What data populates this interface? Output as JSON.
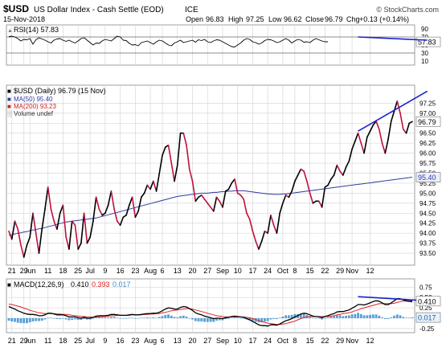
{
  "header": {
    "symbol": "$USD",
    "name": "US Dollar Index - Cash Settle (EOD)",
    "exchange": "ICE",
    "date": "15-Nov-2018",
    "watermark": "© StockCharts.com",
    "open_label": "Open",
    "open": "96.83",
    "high_label": "High",
    "high": "97.25",
    "low_label": "Low",
    "low": "96.62",
    "close_label": "Close",
    "close": "96.79",
    "chg_label": "Chg",
    "chg": "+0.13 (+0.14%)"
  },
  "colors": {
    "price": "#000000",
    "down": "#c0103c",
    "ma50": "#303aa0",
    "ma200": "#cc2222",
    "trend": "#1a22cc",
    "macd_line": "#000000",
    "macd_signal": "#dd2222",
    "histogram": "#3b8fd0",
    "rsi_fill": "#6e8f4a",
    "grid": "#d7d7d7"
  },
  "chart_data": [
    {
      "type": "line",
      "name": "rsi",
      "legend": "RSI(14) 57.83",
      "ylim": [
        0,
        100
      ],
      "yticks": [
        10,
        30,
        50,
        70,
        90
      ],
      "reference_lines": [
        30,
        70
      ],
      "current_value": 57.83,
      "current_label": "57.83",
      "values": [
        71,
        72,
        70,
        66,
        60,
        64,
        63,
        66,
        52,
        63,
        68,
        65,
        62,
        58,
        55,
        62,
        65,
        66,
        62,
        59,
        62,
        58,
        55,
        60,
        66,
        68,
        62,
        56,
        50,
        55,
        54,
        60,
        64,
        62,
        60,
        66,
        72,
        70,
        62,
        61,
        54,
        50,
        51,
        48,
        56,
        58,
        60,
        56,
        52,
        58,
        62,
        60,
        55,
        50,
        48,
        55,
        58,
        62,
        56,
        58,
        60,
        62,
        57,
        63,
        61,
        64,
        58,
        56,
        60,
        63,
        62,
        58,
        54,
        50,
        46,
        45,
        50,
        55,
        62,
        66,
        64,
        58,
        56,
        52,
        55,
        61,
        64,
        63,
        60,
        56,
        58,
        62,
        66,
        62,
        55,
        60,
        64,
        62,
        57,
        58,
        56,
        62,
        66,
        63,
        60,
        58,
        58
      ]
    },
    {
      "type": "line",
      "name": "price",
      "legend": [
        "$USD (Daily) 96.79 (15 Nov)",
        "MA(50) 95.40",
        "MA(200) 93.23",
        "Volume undef"
      ],
      "ylim": [
        93.2,
        97.7
      ],
      "yticks": [
        93.5,
        93.75,
        94.0,
        94.25,
        94.5,
        94.75,
        95.0,
        95.25,
        95.5,
        95.75,
        96.0,
        96.25,
        96.5,
        96.75,
        97.0,
        97.25
      ],
      "ytick_labels": [
        "93.50",
        "93.75",
        "94.00",
        "94.25",
        "94.50",
        "94.75",
        "95.00",
        "95.25",
        "95.50",
        "95.75",
        "96.00",
        "96.25",
        "96.50",
        "96.75",
        "97.00",
        "97.25"
      ],
      "last_value_label": "96.79",
      "ma50_value_label": "95.40",
      "x_labels": [
        "21",
        "29",
        "Jun",
        "11",
        "18",
        "25",
        "Jul",
        "9",
        "16",
        "23",
        "Aug",
        "6",
        "13",
        "20",
        "27",
        "Sep",
        "10",
        "17",
        "24",
        "Oct",
        "8",
        "15",
        "22",
        "29",
        "Nov",
        "12"
      ],
      "x_label_index": [
        1,
        5,
        7,
        13,
        18,
        23,
        27,
        32,
        37,
        42,
        47,
        51,
        56,
        61,
        66,
        71,
        76,
        81,
        86,
        91,
        95,
        100,
        105,
        110,
        114,
        120
      ],
      "values": [
        94.05,
        93.85,
        94.3,
        94.1,
        93.7,
        93.4,
        93.7,
        93.9,
        94.5,
        94.0,
        93.5,
        94.1,
        94.6,
        95.15,
        94.6,
        94.3,
        94.1,
        94.5,
        94.7,
        93.9,
        93.6,
        94.3,
        94.2,
        93.6,
        93.75,
        94.5,
        93.75,
        93.9,
        94.3,
        94.9,
        94.6,
        94.45,
        94.5,
        94.7,
        95.05,
        94.6,
        94.3,
        94.2,
        94.4,
        94.45,
        94.7,
        94.9,
        94.4,
        94.55,
        94.9,
        95.0,
        95.2,
        95.1,
        95.3,
        95.05,
        95.5,
        95.95,
        96.15,
        96.2,
        95.75,
        95.3,
        95.7,
        96.5,
        96.5,
        96.2,
        95.6,
        95.3,
        94.8,
        94.9,
        94.95,
        94.85,
        94.75,
        94.65,
        94.55,
        94.9,
        94.8,
        94.65,
        95.05,
        95.1,
        95.25,
        95.35,
        95.0,
        94.95,
        94.85,
        94.5,
        94.35,
        94.05,
        93.8,
        93.6,
        93.8,
        94.05,
        94.0,
        94.45,
        94.2,
        94.0,
        94.5,
        94.75,
        94.95,
        94.9,
        95.05,
        95.3,
        95.45,
        95.6,
        95.55,
        95.3,
        95.0,
        94.75,
        94.8,
        94.8,
        94.65,
        95.15,
        95.2,
        95.35,
        95.45,
        95.7,
        95.55,
        95.45,
        95.65,
        95.8,
        96.1,
        96.3,
        96.5,
        96.25,
        96.0,
        96.4,
        96.55,
        96.7,
        96.8,
        96.6,
        96.25,
        96.0,
        96.35,
        96.8,
        97.05,
        97.3,
        97.0,
        96.6,
        96.5,
        96.75,
        96.79
      ],
      "ma50": [
        93.95,
        93.96,
        93.98,
        94.0,
        94.01,
        94.03,
        94.04,
        94.06,
        94.08,
        94.09,
        94.11,
        94.12,
        94.14,
        94.16,
        94.18,
        94.2,
        94.22,
        94.24,
        94.26,
        94.28,
        94.29,
        94.3,
        94.31,
        94.32,
        94.33,
        94.34,
        94.35,
        94.36,
        94.37,
        94.38,
        94.4,
        94.42,
        94.44,
        94.46,
        94.48,
        94.5,
        94.52,
        94.54,
        94.56,
        94.58,
        94.6,
        94.62,
        94.64,
        94.66,
        94.68,
        94.7,
        94.72,
        94.74,
        94.76,
        94.78,
        94.8,
        94.82,
        94.84,
        94.86,
        94.88,
        94.9,
        94.92,
        94.93,
        94.94,
        94.95,
        94.96,
        94.97,
        94.98,
        94.99,
        95.0,
        95.0,
        95.0,
        95.01,
        95.02,
        95.02,
        95.03,
        95.04,
        95.04,
        95.05,
        95.05,
        95.06,
        95.06,
        95.06,
        95.06,
        95.05,
        95.04,
        95.03,
        95.02,
        95.01,
        95.0,
        94.99,
        94.98,
        94.98,
        94.97,
        94.97,
        94.97,
        94.98,
        94.98,
        94.99,
        95.0,
        95.01,
        95.02,
        95.03,
        95.04,
        95.05,
        95.06,
        95.07,
        95.08,
        95.09,
        95.1,
        95.11,
        95.12,
        95.13,
        95.14,
        95.15,
        95.16,
        95.17,
        95.18,
        95.19,
        95.2,
        95.21,
        95.22,
        95.23,
        95.24,
        95.25,
        95.26,
        95.27,
        95.28,
        95.29,
        95.3,
        95.31,
        95.32,
        95.33,
        95.34,
        95.35,
        95.36,
        95.37,
        95.38,
        95.39,
        95.4
      ],
      "annotations": [
        {
          "type": "trendline",
          "from": [
            116,
            96.55
          ],
          "to": [
            139,
            97.55
          ]
        }
      ]
    },
    {
      "type": "line",
      "name": "macd",
      "legend": [
        "MACD(12,26,9)",
        "0.410",
        "0.393",
        "0.017"
      ],
      "ylim": [
        -0.35,
        0.95
      ],
      "yticks": [
        -0.25,
        0.0,
        0.25,
        0.5,
        0.75
      ],
      "ytick_labels": [
        "-0.25",
        "0.00",
        "0.25",
        "0.50",
        "0.75"
      ],
      "macd_value_label": "0.410",
      "hist_value_label": "0.017",
      "macd": [
        0.28,
        0.25,
        0.22,
        0.18,
        0.15,
        0.12,
        0.1,
        0.09,
        0.09,
        0.08,
        0.06,
        0.06,
        0.08,
        0.12,
        0.12,
        0.1,
        0.08,
        0.08,
        0.08,
        0.06,
        0.03,
        0.03,
        0.03,
        0.01,
        0.0,
        0.02,
        0.0,
        0.0,
        0.02,
        0.05,
        0.06,
        0.06,
        0.06,
        0.07,
        0.09,
        0.09,
        0.08,
        0.07,
        0.07,
        0.07,
        0.08,
        0.09,
        0.08,
        0.08,
        0.09,
        0.1,
        0.11,
        0.11,
        0.12,
        0.12,
        0.14,
        0.18,
        0.22,
        0.25,
        0.24,
        0.22,
        0.22,
        0.26,
        0.28,
        0.27,
        0.23,
        0.19,
        0.13,
        0.1,
        0.08,
        0.05,
        0.03,
        0.01,
        -0.01,
        0.0,
        0.0,
        -0.01,
        0.01,
        0.02,
        0.04,
        0.05,
        0.04,
        0.03,
        0.02,
        -0.01,
        -0.04,
        -0.08,
        -0.12,
        -0.16,
        -0.18,
        -0.18,
        -0.19,
        -0.16,
        -0.16,
        -0.17,
        -0.14,
        -0.1,
        -0.06,
        -0.04,
        -0.01,
        0.03,
        0.06,
        0.1,
        0.12,
        0.11,
        0.08,
        0.05,
        0.04,
        0.03,
        0.01,
        0.04,
        0.06,
        0.09,
        0.11,
        0.15,
        0.16,
        0.16,
        0.18,
        0.2,
        0.24,
        0.28,
        0.33,
        0.33,
        0.32,
        0.34,
        0.37,
        0.4,
        0.42,
        0.41,
        0.37,
        0.33,
        0.33,
        0.37,
        0.42,
        0.47,
        0.47,
        0.44,
        0.42,
        0.41,
        0.41
      ],
      "signal": [
        0.34,
        0.33,
        0.31,
        0.29,
        0.27,
        0.24,
        0.22,
        0.19,
        0.17,
        0.15,
        0.13,
        0.12,
        0.11,
        0.11,
        0.11,
        0.11,
        0.1,
        0.1,
        0.09,
        0.09,
        0.08,
        0.07,
        0.06,
        0.05,
        0.04,
        0.04,
        0.03,
        0.03,
        0.02,
        0.03,
        0.03,
        0.04,
        0.04,
        0.05,
        0.06,
        0.06,
        0.07,
        0.07,
        0.07,
        0.07,
        0.07,
        0.08,
        0.08,
        0.08,
        0.08,
        0.09,
        0.09,
        0.1,
        0.1,
        0.11,
        0.11,
        0.13,
        0.14,
        0.16,
        0.18,
        0.19,
        0.2,
        0.21,
        0.22,
        0.23,
        0.23,
        0.22,
        0.2,
        0.18,
        0.16,
        0.14,
        0.12,
        0.1,
        0.08,
        0.06,
        0.05,
        0.04,
        0.03,
        0.03,
        0.03,
        0.03,
        0.03,
        0.03,
        0.03,
        0.02,
        0.01,
        -0.01,
        -0.03,
        -0.06,
        -0.08,
        -0.1,
        -0.12,
        -0.13,
        -0.14,
        -0.15,
        -0.15,
        -0.14,
        -0.13,
        -0.11,
        -0.09,
        -0.07,
        -0.04,
        -0.01,
        0.01,
        0.03,
        0.04,
        0.04,
        0.04,
        0.04,
        0.04,
        0.04,
        0.04,
        0.05,
        0.06,
        0.08,
        0.09,
        0.11,
        0.12,
        0.13,
        0.15,
        0.18,
        0.2,
        0.23,
        0.25,
        0.27,
        0.29,
        0.31,
        0.33,
        0.35,
        0.35,
        0.35,
        0.35,
        0.35,
        0.36,
        0.38,
        0.4,
        0.41,
        0.41,
        0.4,
        0.39
      ],
      "annotations": [
        {
          "type": "trendline",
          "from": [
            116,
            0.52
          ],
          "to": [
            139,
            0.42
          ]
        }
      ]
    }
  ]
}
